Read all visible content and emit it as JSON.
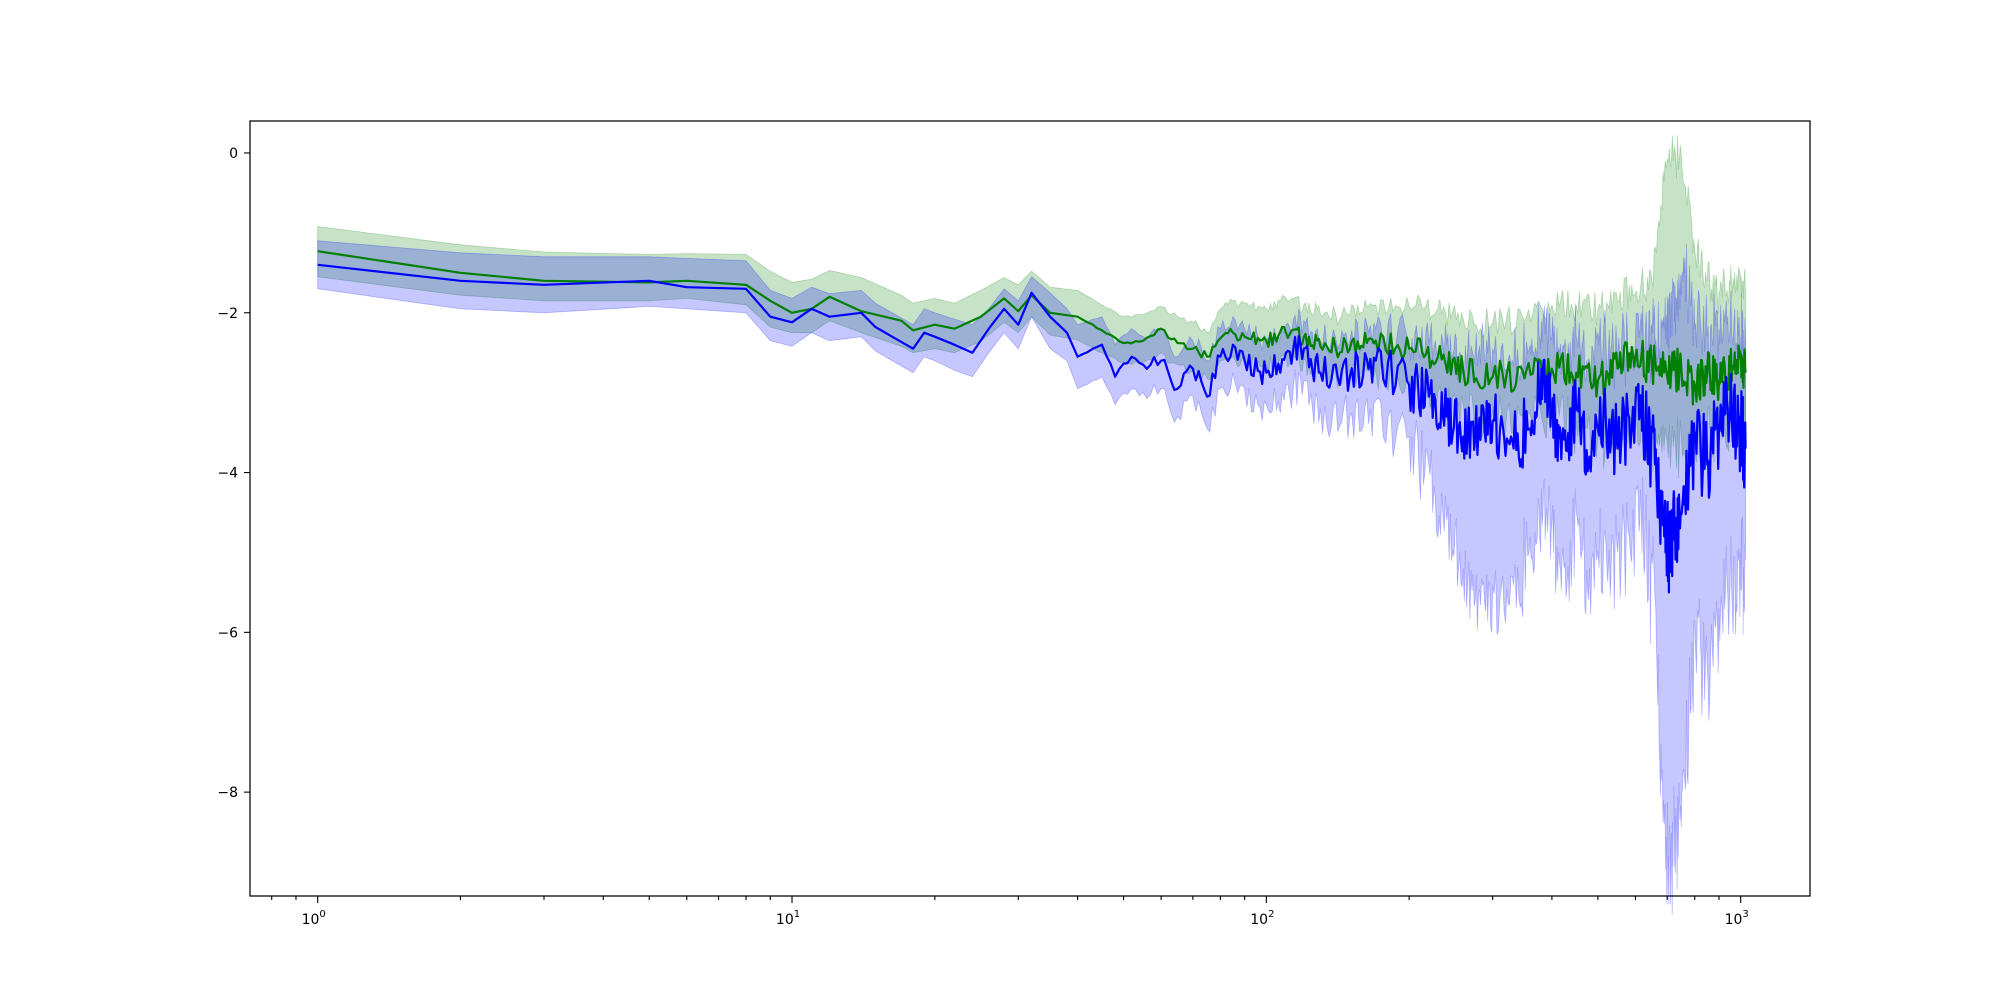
{
  "chart_data": {
    "type": "line",
    "title": "",
    "xlabel": "",
    "ylabel": "",
    "xscale": "log",
    "xlim": [
      0.72,
      1400
    ],
    "ylim": [
      -9.3,
      0.4
    ],
    "grid": false,
    "legend": "none",
    "y_ticks": [
      {
        "value": 0,
        "label": "0"
      },
      {
        "value": -2,
        "label": "−2"
      },
      {
        "value": -4,
        "label": "−4"
      },
      {
        "value": -6,
        "label": "−6"
      },
      {
        "value": -8,
        "label": "−8"
      }
    ],
    "x_ticks": [
      {
        "value": 1,
        "base": "10",
        "exp": "0"
      },
      {
        "value": 10,
        "base": "10",
        "exp": "1"
      },
      {
        "value": 100,
        "base": "10",
        "exp": "2"
      },
      {
        "value": 1000,
        "base": "10",
        "exp": "3"
      }
    ],
    "series": [
      {
        "color": "#008000",
        "band_opacity": 0.22,
        "points": [
          [
            1,
            -1.23,
            -0.92,
            -1.55
          ],
          [
            2,
            -1.5,
            -1.15,
            -1.78
          ],
          [
            3,
            -1.6,
            -1.24,
            -1.85
          ],
          [
            5,
            -1.62,
            -1.27,
            -1.85
          ],
          [
            6,
            -1.6,
            -1.26,
            -1.82
          ],
          [
            8,
            -1.65,
            -1.27,
            -1.9
          ],
          [
            9,
            -1.85,
            -1.48,
            -2.18
          ],
          [
            10,
            -2.0,
            -1.62,
            -2.25
          ],
          [
            11,
            -1.95,
            -1.58,
            -2.25
          ],
          [
            12,
            -1.8,
            -1.47,
            -2.1
          ],
          [
            14,
            -1.98,
            -1.56,
            -2.25
          ],
          [
            17,
            -2.1,
            -1.78,
            -2.42
          ],
          [
            18,
            -2.22,
            -1.88,
            -2.5
          ],
          [
            20,
            -2.15,
            -1.82,
            -2.45
          ],
          [
            22,
            -2.2,
            -1.88,
            -2.5
          ],
          [
            25,
            -2.05,
            -1.72,
            -2.36
          ],
          [
            28,
            -1.82,
            -1.56,
            -2.12
          ],
          [
            30,
            -1.98,
            -1.65,
            -2.25
          ],
          [
            32,
            -1.78,
            -1.48,
            -2.05
          ],
          [
            35,
            -2.0,
            -1.68,
            -2.28
          ],
          [
            40,
            -2.05,
            -1.72,
            -2.34
          ],
          [
            45,
            -2.22,
            -1.9,
            -2.5
          ],
          [
            50,
            -2.38,
            -2.05,
            -2.62
          ],
          [
            55,
            -2.35,
            -2.02,
            -2.62
          ],
          [
            60,
            -2.2,
            -1.92,
            -2.5
          ],
          [
            65,
            -2.38,
            -2.05,
            -2.65
          ],
          [
            70,
            -2.45,
            -2.12,
            -2.72
          ],
          [
            75,
            -2.55,
            -2.25,
            -2.82
          ],
          [
            80,
            -2.32,
            -1.95,
            -2.6
          ],
          [
            85,
            -2.25,
            -1.85,
            -2.55
          ],
          [
            90,
            -2.3,
            -1.88,
            -2.58
          ],
          [
            100,
            -2.35,
            -1.95,
            -2.62
          ],
          [
            110,
            -2.25,
            -1.82,
            -2.55
          ],
          [
            120,
            -2.3,
            -1.9,
            -2.58
          ],
          [
            130,
            -2.42,
            -2.02,
            -2.72
          ],
          [
            150,
            -2.45,
            -2.02,
            -2.75
          ],
          [
            170,
            -2.35,
            -1.9,
            -2.7
          ],
          [
            200,
            -2.45,
            -1.92,
            -2.85
          ],
          [
            230,
            -2.55,
            -1.95,
            -3.0
          ],
          [
            260,
            -2.72,
            -2.08,
            -3.15
          ],
          [
            300,
            -2.8,
            -2.12,
            -3.25
          ],
          [
            350,
            -2.82,
            -2.1,
            -3.3
          ],
          [
            400,
            -2.7,
            -1.9,
            -3.2
          ],
          [
            450,
            -2.75,
            -1.9,
            -3.35
          ],
          [
            500,
            -2.85,
            -1.95,
            -3.5
          ],
          [
            550,
            -2.7,
            -1.85,
            -3.45
          ],
          [
            600,
            -2.55,
            -1.75,
            -3.3
          ],
          [
            650,
            -2.65,
            -1.6,
            -3.5
          ],
          [
            700,
            -2.8,
            -0.08,
            -3.6
          ],
          [
            750,
            -2.7,
            -0.05,
            -3.55
          ],
          [
            800,
            -2.9,
            -1.2,
            -3.55
          ],
          [
            850,
            -2.75,
            -1.6,
            -3.4
          ],
          [
            900,
            -2.85,
            -1.75,
            -3.45
          ],
          [
            950,
            -2.7,
            -1.65,
            -3.3
          ],
          [
            1000,
            -2.6,
            -1.6,
            -3.25
          ],
          [
            1024,
            -2.75,
            -1.7,
            -3.35
          ]
        ]
      },
      {
        "color": "#0000ff",
        "band_opacity": 0.22,
        "points": [
          [
            1,
            -1.4,
            -1.1,
            -1.7
          ],
          [
            2,
            -1.6,
            -1.25,
            -1.95
          ],
          [
            3,
            -1.65,
            -1.3,
            -2.0
          ],
          [
            5,
            -1.6,
            -1.3,
            -1.92
          ],
          [
            6,
            -1.68,
            -1.32,
            -1.95
          ],
          [
            8,
            -1.7,
            -1.35,
            -2.0
          ],
          [
            9,
            -2.05,
            -1.72,
            -2.35
          ],
          [
            10,
            -2.12,
            -1.82,
            -2.42
          ],
          [
            11,
            -1.95,
            -1.68,
            -2.25
          ],
          [
            12,
            -2.05,
            -1.76,
            -2.35
          ],
          [
            14,
            -2.0,
            -1.72,
            -2.3
          ],
          [
            15,
            -2.18,
            -1.88,
            -2.48
          ],
          [
            18,
            -2.45,
            -2.15,
            -2.75
          ],
          [
            19,
            -2.25,
            -1.95,
            -2.55
          ],
          [
            20,
            -2.3,
            -2.0,
            -2.6
          ],
          [
            22,
            -2.4,
            -2.08,
            -2.72
          ],
          [
            24,
            -2.5,
            -2.15,
            -2.8
          ],
          [
            26,
            -2.2,
            -1.95,
            -2.5
          ],
          [
            28,
            -1.95,
            -1.7,
            -2.25
          ],
          [
            30,
            -2.15,
            -1.85,
            -2.45
          ],
          [
            32,
            -1.75,
            -1.55,
            -2.05
          ],
          [
            35,
            -2.05,
            -1.75,
            -2.45
          ],
          [
            38,
            -2.25,
            -1.95,
            -2.6
          ],
          [
            40,
            -2.55,
            -2.15,
            -2.95
          ],
          [
            45,
            -2.4,
            -2.05,
            -2.8
          ],
          [
            48,
            -2.8,
            -2.4,
            -3.15
          ],
          [
            52,
            -2.55,
            -2.2,
            -2.95
          ],
          [
            55,
            -2.65,
            -2.3,
            -3.0
          ],
          [
            60,
            -2.6,
            -2.2,
            -2.95
          ],
          [
            65,
            -2.95,
            -2.55,
            -3.3
          ],
          [
            70,
            -2.7,
            -2.35,
            -3.05
          ],
          [
            75,
            -3.05,
            -2.6,
            -3.45
          ],
          [
            80,
            -2.55,
            -2.2,
            -2.95
          ],
          [
            85,
            -2.4,
            -2.05,
            -2.75
          ],
          [
            90,
            -2.6,
            -2.2,
            -2.95
          ],
          [
            100,
            -2.75,
            -2.35,
            -3.15
          ],
          [
            110,
            -2.5,
            -2.15,
            -2.9
          ],
          [
            120,
            -2.45,
            -2.1,
            -2.85
          ],
          [
            130,
            -2.75,
            -2.35,
            -3.2
          ],
          [
            150,
            -2.8,
            -2.35,
            -3.3
          ],
          [
            170,
            -2.6,
            -2.2,
            -3.1
          ],
          [
            200,
            -2.9,
            -2.35,
            -3.55
          ],
          [
            220,
            -3.05,
            -2.4,
            -3.9
          ],
          [
            240,
            -3.3,
            -2.4,
            -4.6
          ],
          [
            260,
            -3.55,
            -2.6,
            -5.2
          ],
          [
            280,
            -3.5,
            -2.5,
            -5.5
          ],
          [
            300,
            -3.35,
            -2.45,
            -5.4
          ],
          [
            330,
            -3.6,
            -2.6,
            -5.3
          ],
          [
            360,
            -3.45,
            -2.4,
            -4.8
          ],
          [
            380,
            -2.7,
            -2.1,
            -4.2
          ],
          [
            400,
            -3.3,
            -2.3,
            -4.6
          ],
          [
            420,
            -3.6,
            -2.5,
            -5.1
          ],
          [
            450,
            -3.2,
            -2.3,
            -4.5
          ],
          [
            480,
            -3.8,
            -2.6,
            -5.2
          ],
          [
            520,
            -3.4,
            -2.4,
            -4.9
          ],
          [
            550,
            -3.7,
            -2.6,
            -5.0
          ],
          [
            600,
            -3.1,
            -2.3,
            -4.3
          ],
          [
            630,
            -3.4,
            -2.2,
            -4.6
          ],
          [
            660,
            -3.9,
            -2.4,
            -5.6
          ],
          [
            690,
            -4.8,
            -2.2,
            -8.4
          ],
          [
            710,
            -5.0,
            -2.0,
            -8.8
          ],
          [
            730,
            -4.6,
            -1.8,
            -8.2
          ],
          [
            760,
            -4.4,
            -1.5,
            -7.8
          ],
          [
            800,
            -3.6,
            -2.2,
            -5.9
          ],
          [
            850,
            -3.9,
            -2.3,
            -6.4
          ],
          [
            900,
            -3.4,
            -2.2,
            -5.7
          ],
          [
            950,
            -3.3,
            -2.2,
            -5.4
          ],
          [
            1000,
            -3.5,
            -2.3,
            -5.0
          ],
          [
            1024,
            -3.7,
            -2.4,
            -5.1
          ]
        ]
      }
    ]
  }
}
